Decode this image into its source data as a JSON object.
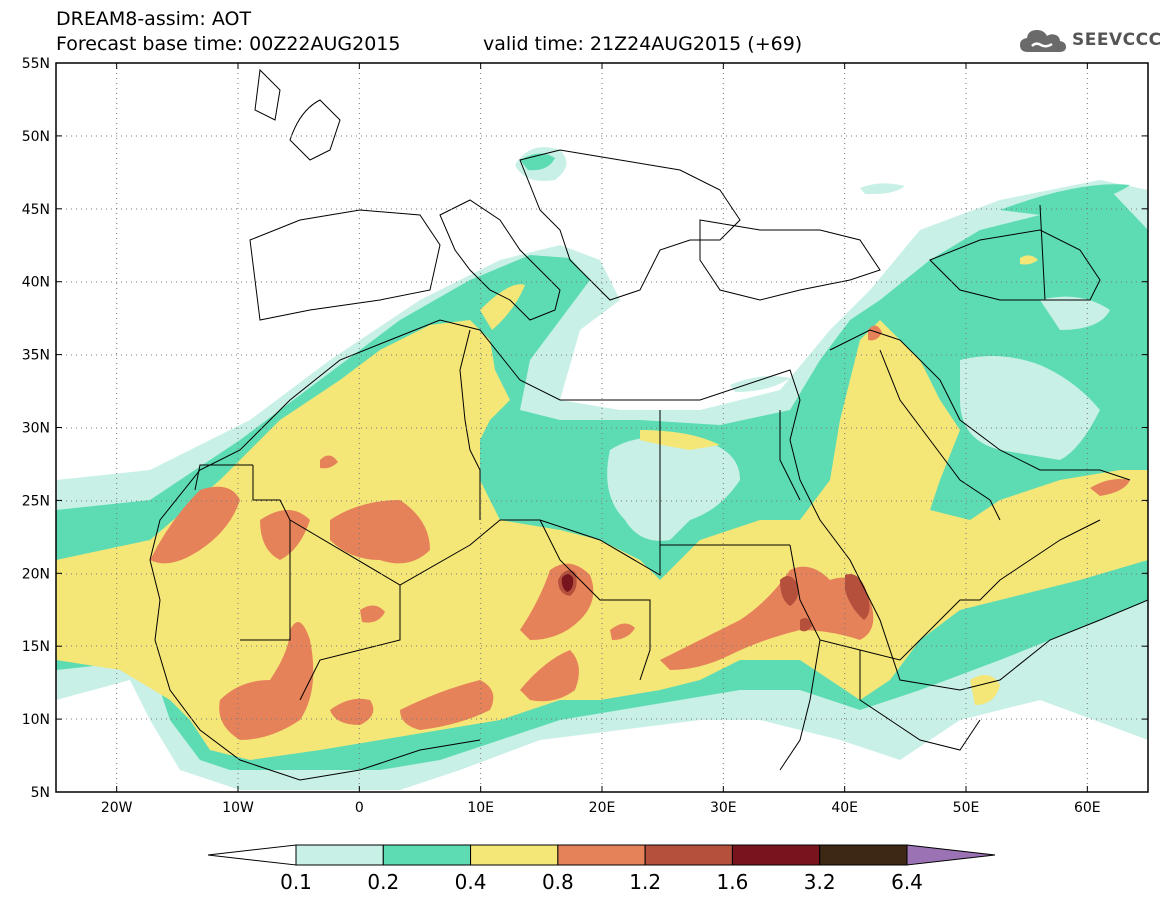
{
  "header": {
    "title_line1": "DREAM8-assim: AOT",
    "title_line2": "Forecast base time: 00Z22AUG2015",
    "valid_time": "valid time: 21Z24AUG2015 (+69)"
  },
  "logo": {
    "text": "SEEVCCC",
    "icon": "cloud-icon"
  },
  "map": {
    "lon_range": [
      -25,
      65
    ],
    "lat_range": [
      5,
      55
    ],
    "lon_ticks": [
      "20W",
      "10W",
      "0",
      "10E",
      "20E",
      "30E",
      "40E",
      "50E",
      "60E"
    ],
    "lat_ticks": [
      "5N",
      "10N",
      "15N",
      "20N",
      "25N",
      "30N",
      "35N",
      "40N",
      "45N",
      "50N",
      "55N"
    ],
    "grid": "dotted"
  },
  "legend": {
    "labels": [
      "0.1",
      "0.2",
      "0.4",
      "0.8",
      "1.2",
      "1.6",
      "3.2",
      "6.4"
    ],
    "colors": [
      "#ffffff",
      "#c8f0e6",
      "#5ddcb4",
      "#f5e678",
      "#e6825a",
      "#b4503c",
      "#78141e",
      "#3c2814",
      "#9b73b4"
    ]
  },
  "palette": {
    "bin_0.1_0.2": "#c8f0e6",
    "bin_0.2_0.4": "#5ddcb4",
    "bin_0.4_0.8": "#f5e678",
    "bin_0.8_1.2": "#e6825a",
    "bin_1.2_1.6": "#b4503c",
    "bin_1.6_3.2": "#78141e"
  }
}
